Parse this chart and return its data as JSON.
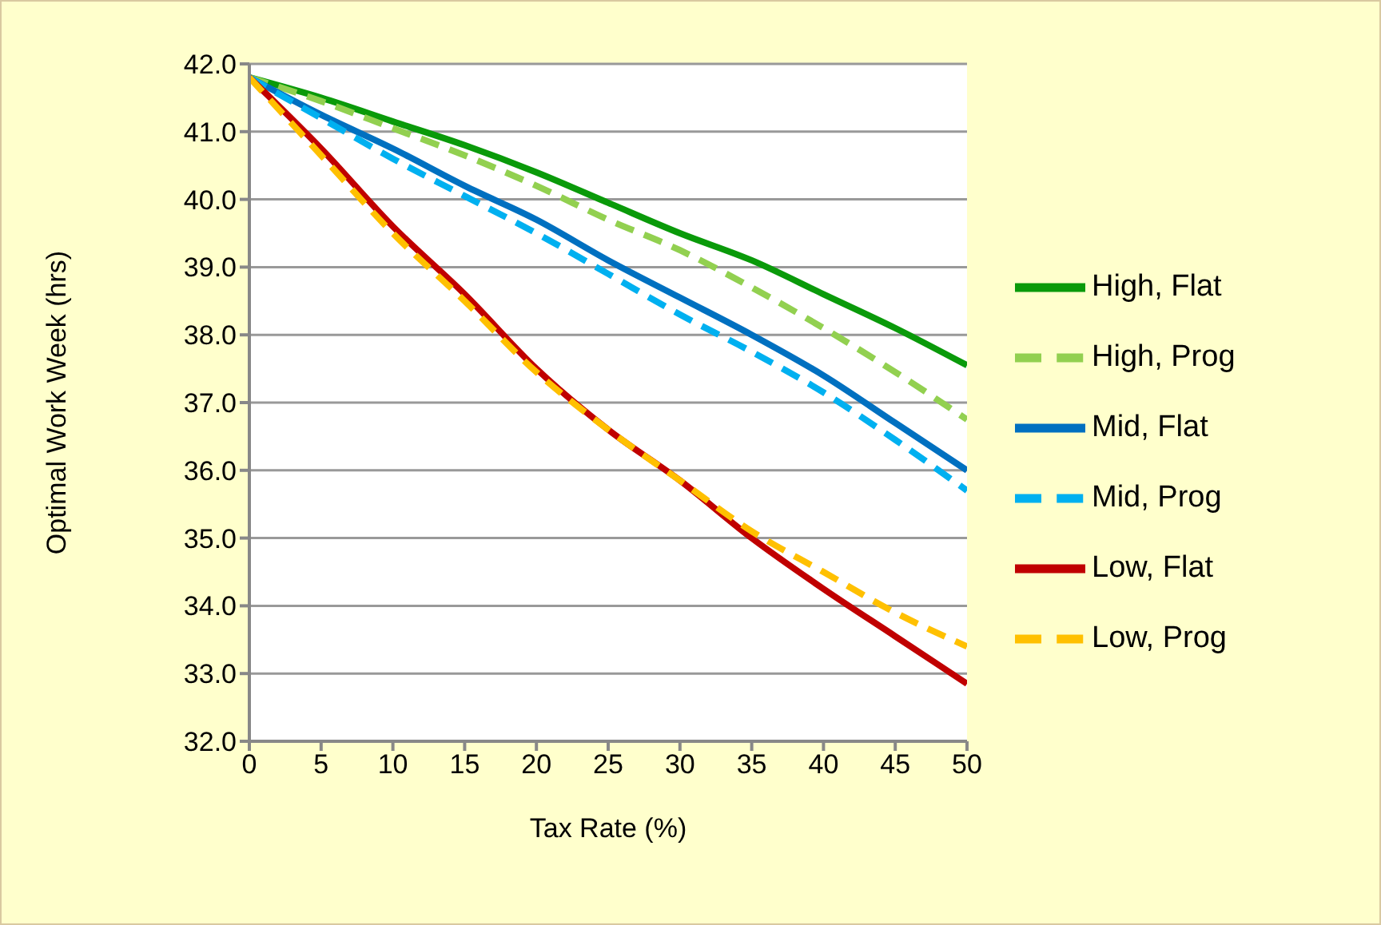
{
  "chart_data": {
    "type": "line",
    "xlabel": "Tax Rate (%)",
    "ylabel": "Optimal Work Week (hrs)",
    "x": [
      0,
      5,
      10,
      15,
      20,
      25,
      30,
      35,
      40,
      45,
      50
    ],
    "xlim": [
      0,
      50
    ],
    "xticks": [
      0,
      5,
      10,
      15,
      20,
      25,
      30,
      35,
      40,
      45,
      50
    ],
    "ylim": [
      32,
      42
    ],
    "yticks": [
      {
        "value": 32,
        "label": "32.0"
      },
      {
        "value": 33,
        "label": "33.0"
      },
      {
        "value": 34,
        "label": "34.0"
      },
      {
        "value": 35,
        "label": "35.0"
      },
      {
        "value": 36,
        "label": "36.0"
      },
      {
        "value": 37,
        "label": "37.0"
      },
      {
        "value": 38,
        "label": "38.0"
      },
      {
        "value": 39,
        "label": "39.0"
      },
      {
        "value": 40,
        "label": "40.0"
      },
      {
        "value": 41,
        "label": "41.0"
      },
      {
        "value": 42,
        "label": "42.0"
      }
    ],
    "grid": "y",
    "legend": "right",
    "marker": "none",
    "series": [
      {
        "name": "High, Flat",
        "color": "#0a9a0a",
        "line_style": "solid",
        "values": [
          41.8,
          41.5,
          41.15,
          40.8,
          40.4,
          39.95,
          39.5,
          39.1,
          38.6,
          38.1,
          37.55
        ]
      },
      {
        "name": "High, Prog",
        "color": "#92d050",
        "line_style": "dashed",
        "values": [
          41.8,
          41.45,
          41.05,
          40.65,
          40.2,
          39.7,
          39.25,
          38.7,
          38.1,
          37.45,
          36.75
        ]
      },
      {
        "name": "Mid, Flat",
        "color": "#0070c0",
        "line_style": "solid",
        "values": [
          41.8,
          41.25,
          40.75,
          40.2,
          39.7,
          39.1,
          38.55,
          38.0,
          37.4,
          36.7,
          36.0
        ]
      },
      {
        "name": "Mid, Prog",
        "color": "#00b0f0",
        "line_style": "dashed",
        "values": [
          41.8,
          41.2,
          40.6,
          40.05,
          39.5,
          38.9,
          38.3,
          37.75,
          37.15,
          36.45,
          35.7
        ]
      },
      {
        "name": "Low, Flat",
        "color": "#c00000",
        "line_style": "solid",
        "values": [
          41.8,
          40.75,
          39.6,
          38.6,
          37.5,
          36.6,
          35.85,
          35.0,
          34.25,
          33.55,
          32.85
        ]
      },
      {
        "name": "Low, Prog",
        "color": "#ffc000",
        "line_style": "dashed",
        "values": [
          41.8,
          40.65,
          39.5,
          38.5,
          37.45,
          36.6,
          35.85,
          35.1,
          34.5,
          33.9,
          33.4
        ]
      }
    ]
  }
}
